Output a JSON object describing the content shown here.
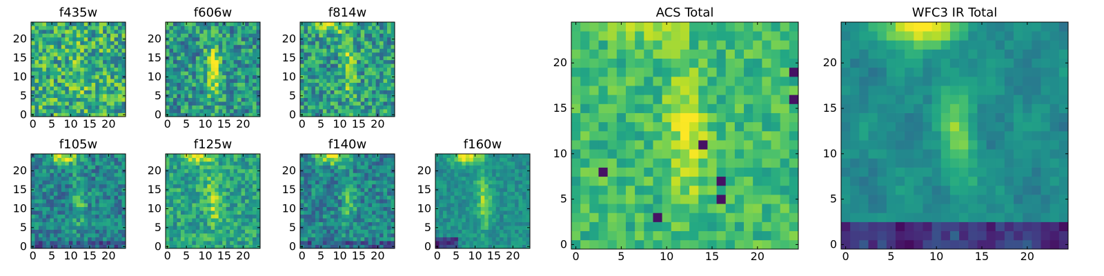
{
  "chart_data": [
    {
      "type": "heatmap",
      "title": "f435w",
      "colormap": "viridis",
      "grid_size": [
        25,
        25
      ],
      "xlim": [
        -0.5,
        24.5
      ],
      "ylim": [
        -0.5,
        24.5
      ],
      "xticks": [
        0,
        5,
        10,
        15,
        20
      ],
      "yticks": [
        0,
        5,
        10,
        15,
        20
      ],
      "pattern": "noise",
      "values": []
    },
    {
      "type": "heatmap",
      "title": "f606w",
      "colormap": "viridis",
      "grid_size": [
        25,
        25
      ],
      "xlim": [
        -0.5,
        24.5
      ],
      "ylim": [
        -0.5,
        24.5
      ],
      "xticks": [
        0,
        5,
        10,
        15,
        20
      ],
      "yticks": [
        0,
        5,
        10,
        15,
        20
      ],
      "pattern": "arc",
      "values": []
    },
    {
      "type": "heatmap",
      "title": "f814w",
      "colormap": "viridis",
      "grid_size": [
        25,
        25
      ],
      "xlim": [
        -0.5,
        24.5
      ],
      "ylim": [
        -0.5,
        24.5
      ],
      "xticks": [
        0,
        5,
        10,
        15,
        20
      ],
      "yticks": [
        0,
        5,
        10,
        15,
        20
      ],
      "pattern": "arc_topglow",
      "values": []
    },
    {
      "type": "heatmap",
      "title": "f105w",
      "colormap": "viridis",
      "grid_size": [
        25,
        25
      ],
      "xlim": [
        -0.5,
        24.5
      ],
      "ylim": [
        -0.5,
        24.5
      ],
      "xticks": [
        0,
        5,
        10,
        15,
        20
      ],
      "yticks": [
        0,
        5,
        10,
        15,
        20
      ],
      "pattern": "ir",
      "values": []
    },
    {
      "type": "heatmap",
      "title": "f125w",
      "colormap": "viridis",
      "grid_size": [
        25,
        25
      ],
      "xlim": [
        -0.5,
        24.5
      ],
      "ylim": [
        -0.5,
        24.5
      ],
      "xticks": [
        0,
        5,
        10,
        15,
        20
      ],
      "yticks": [
        0,
        5,
        10,
        15,
        20
      ],
      "pattern": "ir_bright",
      "values": []
    },
    {
      "type": "heatmap",
      "title": "f140w",
      "colormap": "viridis",
      "grid_size": [
        25,
        25
      ],
      "xlim": [
        -0.5,
        24.5
      ],
      "ylim": [
        -0.5,
        24.5
      ],
      "xticks": [
        0,
        5,
        10,
        15,
        20
      ],
      "yticks": [
        0,
        5,
        10,
        15,
        20
      ],
      "pattern": "ir",
      "values": []
    },
    {
      "type": "heatmap",
      "title": "f160w",
      "colormap": "viridis",
      "grid_size": [
        25,
        25
      ],
      "xlim": [
        -0.5,
        24.5
      ],
      "ylim": [
        -0.5,
        24.5
      ],
      "xticks": [
        0,
        5,
        10,
        15,
        20
      ],
      "yticks": [
        0,
        5,
        10,
        15,
        20
      ],
      "pattern": "ir_smooth",
      "values": []
    },
    {
      "type": "heatmap",
      "title": "ACS Total",
      "colormap": "viridis",
      "grid_size": [
        25,
        25
      ],
      "xlim": [
        -0.5,
        24.5
      ],
      "ylim": [
        -0.5,
        24.5
      ],
      "xticks": [
        0,
        5,
        10,
        15,
        20
      ],
      "yticks": [
        0,
        5,
        10,
        15,
        20
      ],
      "pattern": "acs_total",
      "values": []
    },
    {
      "type": "heatmap",
      "title": "WFC3 IR Total",
      "colormap": "viridis",
      "grid_size": [
        25,
        25
      ],
      "xlim": [
        -0.5,
        24.5
      ],
      "ylim": [
        -0.5,
        24.5
      ],
      "xticks": [
        0,
        5,
        10,
        15,
        20
      ],
      "yticks": [
        0,
        5,
        10,
        15,
        20
      ],
      "pattern": "ir_total",
      "values": []
    }
  ]
}
